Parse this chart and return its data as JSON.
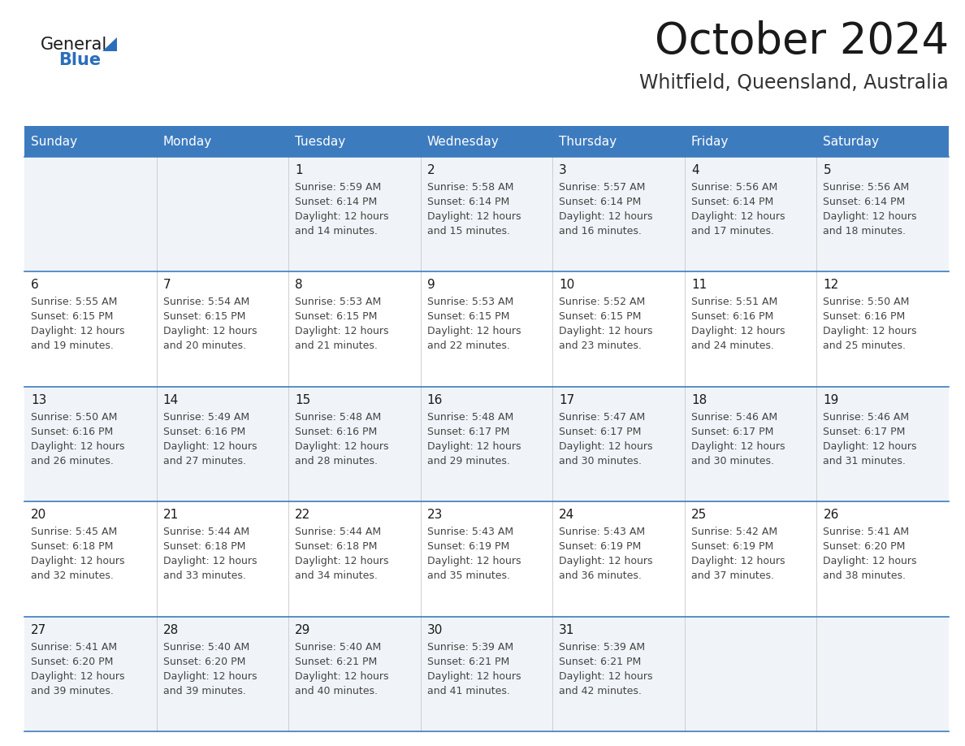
{
  "title": "October 2024",
  "subtitle": "Whitfield, Queensland, Australia",
  "header_bg": "#3D7BBF",
  "header_text": "#FFFFFF",
  "cell_bg_odd": "#F0F4F8",
  "cell_bg_even": "#FFFFFF",
  "day_headers": [
    "Sunday",
    "Monday",
    "Tuesday",
    "Wednesday",
    "Thursday",
    "Friday",
    "Saturday"
  ],
  "title_color": "#1a1a1a",
  "subtitle_color": "#333333",
  "line_color": "#3D7BBF",
  "date_color": "#1a1a1a",
  "text_color": "#444444",
  "logo_general_color": "#1a1a1a",
  "logo_blue_color": "#2A6EBB",
  "logo_triangle_color": "#2A6EBB",
  "days_data": [
    {
      "day": 1,
      "col": 2,
      "row": 0,
      "sunrise": "5:59 AM",
      "sunset": "6:14 PM",
      "daylight_min": "14"
    },
    {
      "day": 2,
      "col": 3,
      "row": 0,
      "sunrise": "5:58 AM",
      "sunset": "6:14 PM",
      "daylight_min": "15"
    },
    {
      "day": 3,
      "col": 4,
      "row": 0,
      "sunrise": "5:57 AM",
      "sunset": "6:14 PM",
      "daylight_min": "16"
    },
    {
      "day": 4,
      "col": 5,
      "row": 0,
      "sunrise": "5:56 AM",
      "sunset": "6:14 PM",
      "daylight_min": "17"
    },
    {
      "day": 5,
      "col": 6,
      "row": 0,
      "sunrise": "5:56 AM",
      "sunset": "6:14 PM",
      "daylight_min": "18"
    },
    {
      "day": 6,
      "col": 0,
      "row": 1,
      "sunrise": "5:55 AM",
      "sunset": "6:15 PM",
      "daylight_min": "19"
    },
    {
      "day": 7,
      "col": 1,
      "row": 1,
      "sunrise": "5:54 AM",
      "sunset": "6:15 PM",
      "daylight_min": "20"
    },
    {
      "day": 8,
      "col": 2,
      "row": 1,
      "sunrise": "5:53 AM",
      "sunset": "6:15 PM",
      "daylight_min": "21"
    },
    {
      "day": 9,
      "col": 3,
      "row": 1,
      "sunrise": "5:53 AM",
      "sunset": "6:15 PM",
      "daylight_min": "22"
    },
    {
      "day": 10,
      "col": 4,
      "row": 1,
      "sunrise": "5:52 AM",
      "sunset": "6:15 PM",
      "daylight_min": "23"
    },
    {
      "day": 11,
      "col": 5,
      "row": 1,
      "sunrise": "5:51 AM",
      "sunset": "6:16 PM",
      "daylight_min": "24"
    },
    {
      "day": 12,
      "col": 6,
      "row": 1,
      "sunrise": "5:50 AM",
      "sunset": "6:16 PM",
      "daylight_min": "25"
    },
    {
      "day": 13,
      "col": 0,
      "row": 2,
      "sunrise": "5:50 AM",
      "sunset": "6:16 PM",
      "daylight_min": "26"
    },
    {
      "day": 14,
      "col": 1,
      "row": 2,
      "sunrise": "5:49 AM",
      "sunset": "6:16 PM",
      "daylight_min": "27"
    },
    {
      "day": 15,
      "col": 2,
      "row": 2,
      "sunrise": "5:48 AM",
      "sunset": "6:16 PM",
      "daylight_min": "28"
    },
    {
      "day": 16,
      "col": 3,
      "row": 2,
      "sunrise": "5:48 AM",
      "sunset": "6:17 PM",
      "daylight_min": "29"
    },
    {
      "day": 17,
      "col": 4,
      "row": 2,
      "sunrise": "5:47 AM",
      "sunset": "6:17 PM",
      "daylight_min": "30"
    },
    {
      "day": 18,
      "col": 5,
      "row": 2,
      "sunrise": "5:46 AM",
      "sunset": "6:17 PM",
      "daylight_min": "30"
    },
    {
      "day": 19,
      "col": 6,
      "row": 2,
      "sunrise": "5:46 AM",
      "sunset": "6:17 PM",
      "daylight_min": "31"
    },
    {
      "day": 20,
      "col": 0,
      "row": 3,
      "sunrise": "5:45 AM",
      "sunset": "6:18 PM",
      "daylight_min": "32"
    },
    {
      "day": 21,
      "col": 1,
      "row": 3,
      "sunrise": "5:44 AM",
      "sunset": "6:18 PM",
      "daylight_min": "33"
    },
    {
      "day": 22,
      "col": 2,
      "row": 3,
      "sunrise": "5:44 AM",
      "sunset": "6:18 PM",
      "daylight_min": "34"
    },
    {
      "day": 23,
      "col": 3,
      "row": 3,
      "sunrise": "5:43 AM",
      "sunset": "6:19 PM",
      "daylight_min": "35"
    },
    {
      "day": 24,
      "col": 4,
      "row": 3,
      "sunrise": "5:43 AM",
      "sunset": "6:19 PM",
      "daylight_min": "36"
    },
    {
      "day": 25,
      "col": 5,
      "row": 3,
      "sunrise": "5:42 AM",
      "sunset": "6:19 PM",
      "daylight_min": "37"
    },
    {
      "day": 26,
      "col": 6,
      "row": 3,
      "sunrise": "5:41 AM",
      "sunset": "6:20 PM",
      "daylight_min": "38"
    },
    {
      "day": 27,
      "col": 0,
      "row": 4,
      "sunrise": "5:41 AM",
      "sunset": "6:20 PM",
      "daylight_min": "39"
    },
    {
      "day": 28,
      "col": 1,
      "row": 4,
      "sunrise": "5:40 AM",
      "sunset": "6:20 PM",
      "daylight_min": "39"
    },
    {
      "day": 29,
      "col": 2,
      "row": 4,
      "sunrise": "5:40 AM",
      "sunset": "6:21 PM",
      "daylight_min": "40"
    },
    {
      "day": 30,
      "col": 3,
      "row": 4,
      "sunrise": "5:39 AM",
      "sunset": "6:21 PM",
      "daylight_min": "41"
    },
    {
      "day": 31,
      "col": 4,
      "row": 4,
      "sunrise": "5:39 AM",
      "sunset": "6:21 PM",
      "daylight_min": "42"
    }
  ]
}
